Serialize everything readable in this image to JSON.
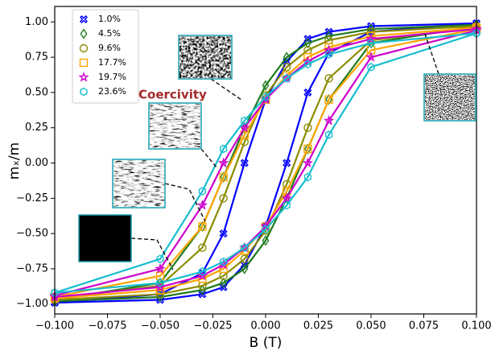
{
  "chart_data": {
    "type": "line",
    "xlabel": "B (T)",
    "ylabel": "mₓ/m",
    "annotation": "Coercivity",
    "x": [
      0.1,
      0.05,
      0.03,
      0.02,
      0.01,
      0,
      -0.01,
      -0.02,
      -0.03,
      -0.05,
      -0.1,
      -0.1,
      -0.05,
      -0.03,
      -0.02,
      -0.01,
      0,
      0.01,
      0.02,
      0.03,
      0.05,
      0.1
    ],
    "xlim": [
      -0.1,
      0.1
    ],
    "xticks": [
      {
        "value": -0.1,
        "label": "−0.100"
      },
      {
        "value": -0.075,
        "label": "−0.075"
      },
      {
        "value": -0.05,
        "label": "−0.050"
      },
      {
        "value": -0.025,
        "label": "−0.025"
      },
      {
        "value": 0,
        "label": "0.000"
      },
      {
        "value": 0.025,
        "label": "0.025"
      },
      {
        "value": 0.05,
        "label": "0.050"
      },
      {
        "value": 0.075,
        "label": "0.075"
      },
      {
        "value": 0.1,
        "label": "0.100"
      }
    ],
    "ylim": [
      -1.07,
      1.11
    ],
    "yticks": [
      {
        "value": -1,
        "label": "−1.00"
      },
      {
        "value": -0.75,
        "label": "−0.75"
      },
      {
        "value": -0.5,
        "label": "−0.50"
      },
      {
        "value": -0.25,
        "label": "−0.25"
      },
      {
        "value": 0,
        "label": "0.00"
      },
      {
        "value": 0.25,
        "label": "0.25"
      },
      {
        "value": 0.5,
        "label": "0.50"
      },
      {
        "value": 0.75,
        "label": "0.75"
      },
      {
        "value": 1,
        "label": "1.00"
      }
    ],
    "legend": "upper left",
    "series": [
      {
        "name": "1.0%",
        "color": "#0000ff",
        "marker": "x",
        "values": [
          0.99,
          0.97,
          0.93,
          0.88,
          0.72,
          0.45,
          0.0,
          -0.5,
          -0.78,
          -0.93,
          -0.99,
          -0.99,
          -0.97,
          -0.93,
          -0.88,
          -0.72,
          -0.45,
          0.0,
          0.5,
          0.78,
          0.93,
          0.99
        ]
      },
      {
        "name": "4.5%",
        "color": "#1e7b1e",
        "marker": "diamond",
        "values": [
          0.98,
          0.95,
          0.9,
          0.85,
          0.75,
          0.55,
          0.25,
          -0.1,
          -0.45,
          -0.85,
          -0.97,
          -0.98,
          -0.95,
          -0.9,
          -0.85,
          -0.75,
          -0.55,
          -0.25,
          0.1,
          0.45,
          0.85,
          0.97
        ]
      },
      {
        "name": "9.6%",
        "color": "#8b8b00",
        "marker": "circle",
        "values": [
          0.97,
          0.93,
          0.87,
          0.8,
          0.68,
          0.48,
          0.15,
          -0.25,
          -0.6,
          -0.87,
          -0.96,
          -0.97,
          -0.93,
          -0.87,
          -0.8,
          -0.68,
          -0.48,
          -0.15,
          0.25,
          0.6,
          0.87,
          0.96
        ]
      },
      {
        "name": "17.7%",
        "color": "#ffa500",
        "marker": "square",
        "values": [
          0.96,
          0.9,
          0.82,
          0.75,
          0.62,
          0.45,
          0.2,
          -0.1,
          -0.45,
          -0.8,
          -0.95,
          -0.96,
          -0.9,
          -0.82,
          -0.75,
          -0.62,
          -0.45,
          -0.2,
          0.1,
          0.45,
          0.8,
          0.95
        ]
      },
      {
        "name": "19.7%",
        "color": "#cc00cc",
        "marker": "star",
        "values": [
          0.95,
          0.88,
          0.8,
          0.72,
          0.6,
          0.45,
          0.25,
          0.0,
          -0.3,
          -0.75,
          -0.94,
          -0.95,
          -0.88,
          -0.8,
          -0.72,
          -0.6,
          -0.45,
          -0.25,
          0.0,
          0.3,
          0.75,
          0.94
        ]
      },
      {
        "name": "23.6%",
        "color": "#17becf",
        "marker": "hexagon",
        "values": [
          0.92,
          0.85,
          0.77,
          0.7,
          0.6,
          0.47,
          0.3,
          0.1,
          -0.2,
          -0.68,
          -0.92,
          -0.92,
          -0.85,
          -0.77,
          -0.7,
          -0.6,
          -0.47,
          -0.3,
          -0.1,
          0.2,
          0.68,
          0.92
        ]
      }
    ]
  }
}
